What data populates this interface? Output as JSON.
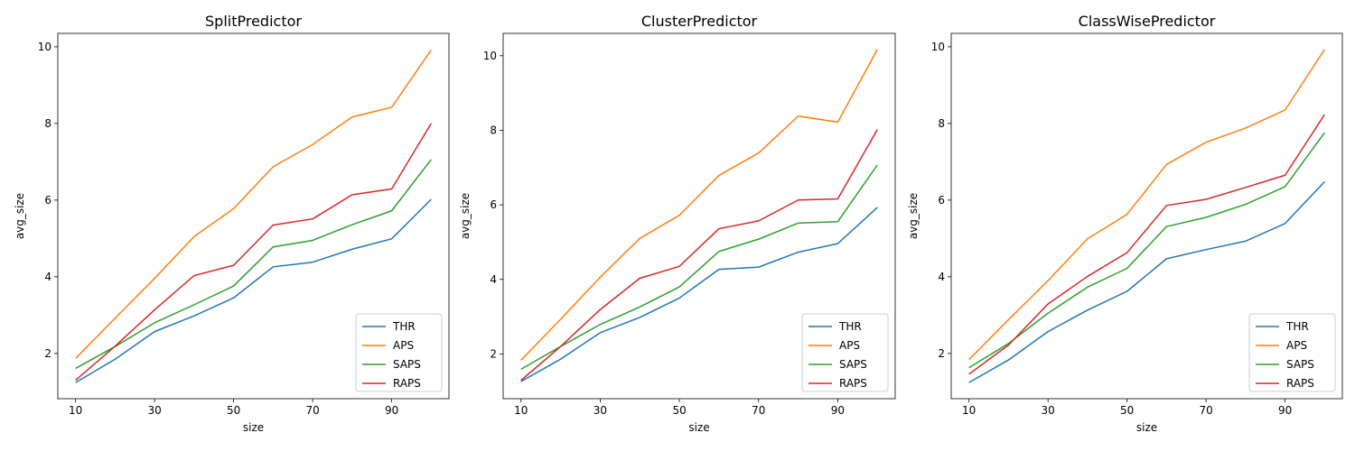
{
  "x_values": [
    10,
    20,
    30,
    40,
    50,
    60,
    70,
    80,
    90,
    100
  ],
  "x_ticks": [
    10,
    30,
    50,
    70,
    90
  ],
  "colors": {
    "THR": "#1f77b4",
    "APS": "#ff7f0e",
    "SAPS": "#2ca02c",
    "RAPS": "#d62728"
  },
  "chart_data": [
    {
      "type": "line",
      "title": "SplitPredictor",
      "xlabel": "size",
      "ylabel": "avg_size",
      "xlim": [
        5.5,
        104.5
      ],
      "ylim": [
        0.82,
        10.35
      ],
      "yticks": [
        2,
        4,
        6,
        8,
        10
      ],
      "legend_position": "lower-right",
      "series": [
        {
          "name": "THR",
          "values": [
            1.24,
            1.85,
            2.57,
            2.98,
            3.45,
            4.26,
            4.38,
            4.72,
            4.99,
            6.02
          ]
        },
        {
          "name": "APS",
          "values": [
            1.87,
            2.92,
            3.96,
            5.05,
            5.78,
            6.87,
            7.45,
            8.17,
            8.42,
            9.92
          ]
        },
        {
          "name": "SAPS",
          "values": [
            1.61,
            2.18,
            2.8,
            3.27,
            3.76,
            4.78,
            4.95,
            5.36,
            5.72,
            7.06
          ]
        },
        {
          "name": "RAPS",
          "values": [
            1.3,
            2.19,
            3.14,
            4.03,
            4.3,
            5.35,
            5.51,
            6.14,
            6.29,
            8.0
          ]
        }
      ]
    },
    {
      "type": "line",
      "title": "ClusterPredictor",
      "xlabel": "size",
      "ylabel": "avg_size",
      "xlim": [
        5.5,
        104.5
      ],
      "ylim": [
        0.8,
        10.6
      ],
      "yticks": [
        2,
        4,
        6,
        8,
        10
      ],
      "legend_position": "lower-right",
      "series": [
        {
          "name": "THR",
          "values": [
            1.26,
            1.86,
            2.57,
            2.98,
            3.5,
            4.27,
            4.33,
            4.73,
            4.96,
            5.93
          ]
        },
        {
          "name": "APS",
          "values": [
            1.83,
            2.93,
            4.06,
            5.1,
            5.72,
            6.79,
            7.39,
            8.38,
            8.22,
            10.17
          ]
        },
        {
          "name": "SAPS",
          "values": [
            1.59,
            2.2,
            2.79,
            3.26,
            3.8,
            4.75,
            5.08,
            5.51,
            5.55,
            7.07
          ]
        },
        {
          "name": "RAPS",
          "values": [
            1.29,
            2.2,
            3.19,
            4.03,
            4.35,
            5.36,
            5.57,
            6.13,
            6.16,
            8.02
          ]
        }
      ]
    },
    {
      "type": "line",
      "title": "ClassWisePredictor",
      "xlabel": "size",
      "ylabel": "avg_size",
      "xlim": [
        5.5,
        104.5
      ],
      "ylim": [
        0.82,
        10.35
      ],
      "yticks": [
        2,
        4,
        6,
        8,
        10
      ],
      "legend_position": "lower-right",
      "series": [
        {
          "name": "THR",
          "values": [
            1.24,
            1.83,
            2.57,
            3.13,
            3.62,
            4.47,
            4.71,
            4.93,
            5.39,
            6.48
          ]
        },
        {
          "name": "APS",
          "values": [
            1.84,
            2.88,
            3.9,
            4.99,
            5.63,
            6.93,
            7.51,
            7.88,
            8.35,
            9.93
          ]
        },
        {
          "name": "SAPS",
          "values": [
            1.63,
            2.26,
            3.05,
            3.73,
            4.22,
            5.31,
            5.55,
            5.89,
            6.35,
            7.76
          ]
        },
        {
          "name": "RAPS",
          "values": [
            1.46,
            2.22,
            3.29,
            4.01,
            4.63,
            5.86,
            6.02,
            6.33,
            6.65,
            8.23
          ]
        }
      ]
    }
  ]
}
